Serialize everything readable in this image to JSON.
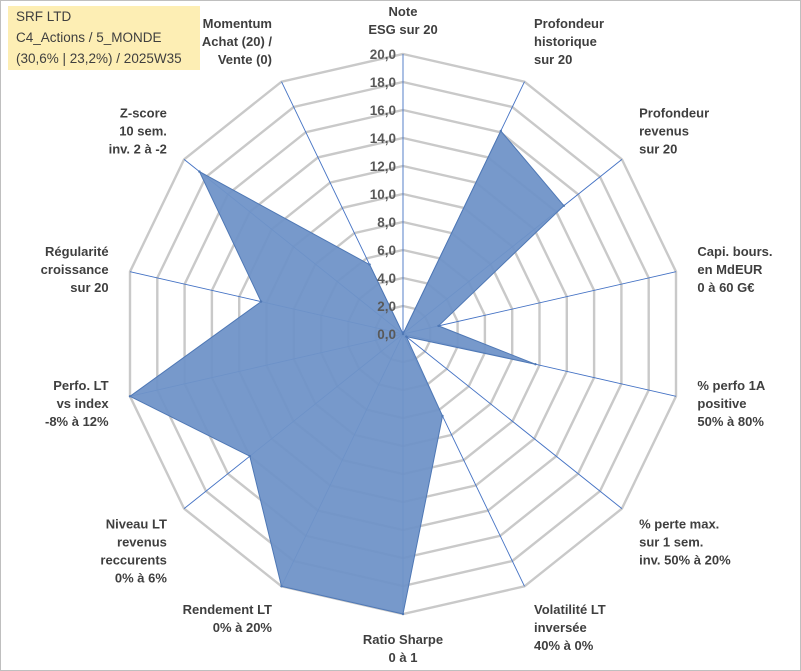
{
  "info": {
    "line1": "SRF LTD",
    "line2": "C4_Actions / 5_MONDE",
    "line3": "(30,6% | 23,2%) / 2025W35"
  },
  "colors": {
    "fill": "#7094c8",
    "stroke": "#4f78b5",
    "grid": "#c9c9c9",
    "spoke": "#4472c4",
    "infobox": "#fdeeb4"
  },
  "chart_data": {
    "type": "radar",
    "rmax": 20,
    "ticks": [
      "0,0",
      "2,0",
      "4,0",
      "6,0",
      "8,0",
      "10,0",
      "12,0",
      "14,0",
      "16,0",
      "18,0",
      "20,0"
    ],
    "categories": [
      [
        "Note",
        "ESG sur 20"
      ],
      [
        "Profondeur",
        "historique",
        "sur 20"
      ],
      [
        "Profondeur",
        "revenus",
        "sur 20"
      ],
      [
        "Capi. bours.",
        "en MdEUR",
        "0 à 60 G€"
      ],
      [
        "% perfo 1A",
        "positive",
        "50% à 80%"
      ],
      [
        "% perte max.",
        "sur 1 sem.",
        "inv. 50% à 20%"
      ],
      [
        "Volatilité LT",
        "inversée",
        "40% à 0%"
      ],
      [
        "Ratio Sharpe",
        "0 à 1"
      ],
      [
        "Rendement LT",
        "0% à 20%"
      ],
      [
        "Niveau LT",
        "revenus",
        "reccurents",
        "0% à 6%"
      ],
      [
        "Perfo. LT",
        "vs index",
        "-8% à 12%"
      ],
      [
        "Régularité",
        "croissance",
        "sur 20"
      ],
      [
        "Z-score",
        "10 sem.",
        "inv. 2 à -2"
      ],
      [
        "Momentum",
        "Achat (20) /",
        "Vente (0)"
      ]
    ],
    "values": [
      0,
      16.1,
      14.7,
      2.6,
      9.7,
      0.3,
      6.5,
      20,
      20,
      14.0,
      20,
      10.4,
      18.6,
      5.5
    ],
    "grid": true,
    "legend": "none"
  }
}
